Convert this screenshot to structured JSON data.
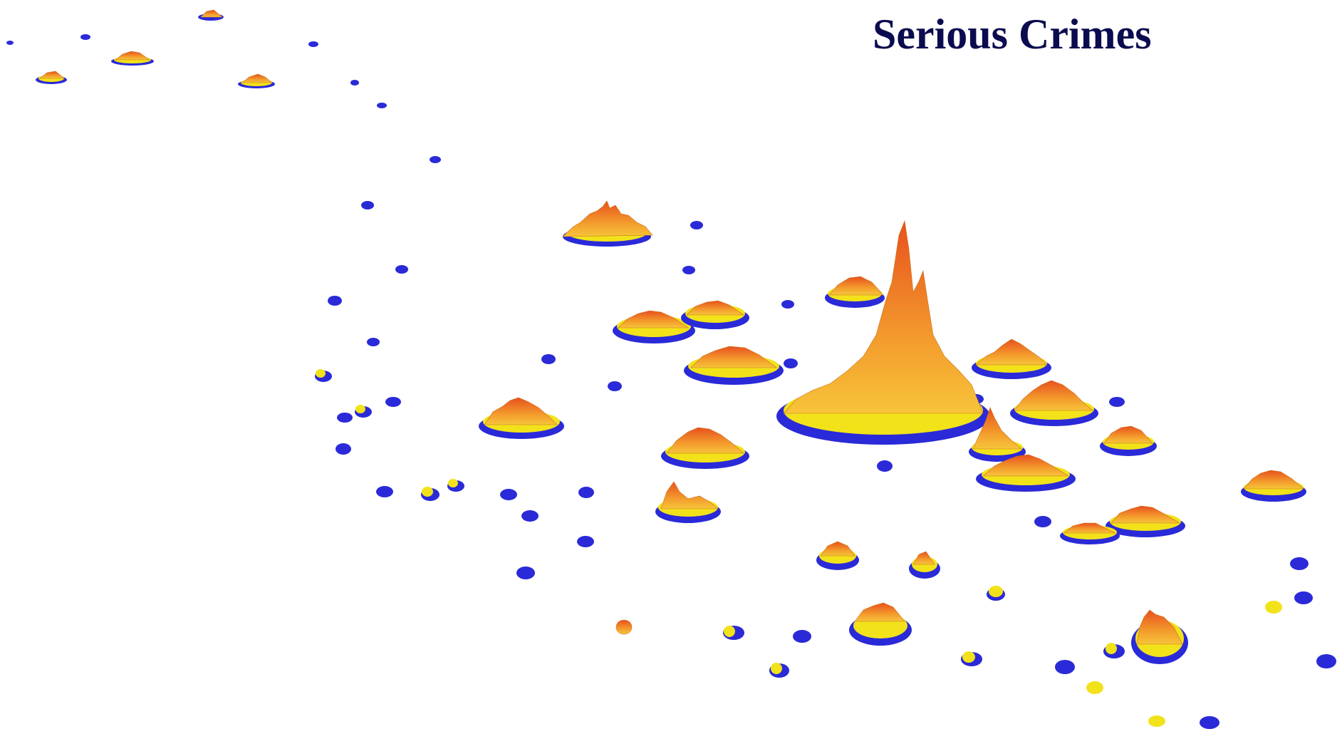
{
  "title": "Serious Crimes"
}
